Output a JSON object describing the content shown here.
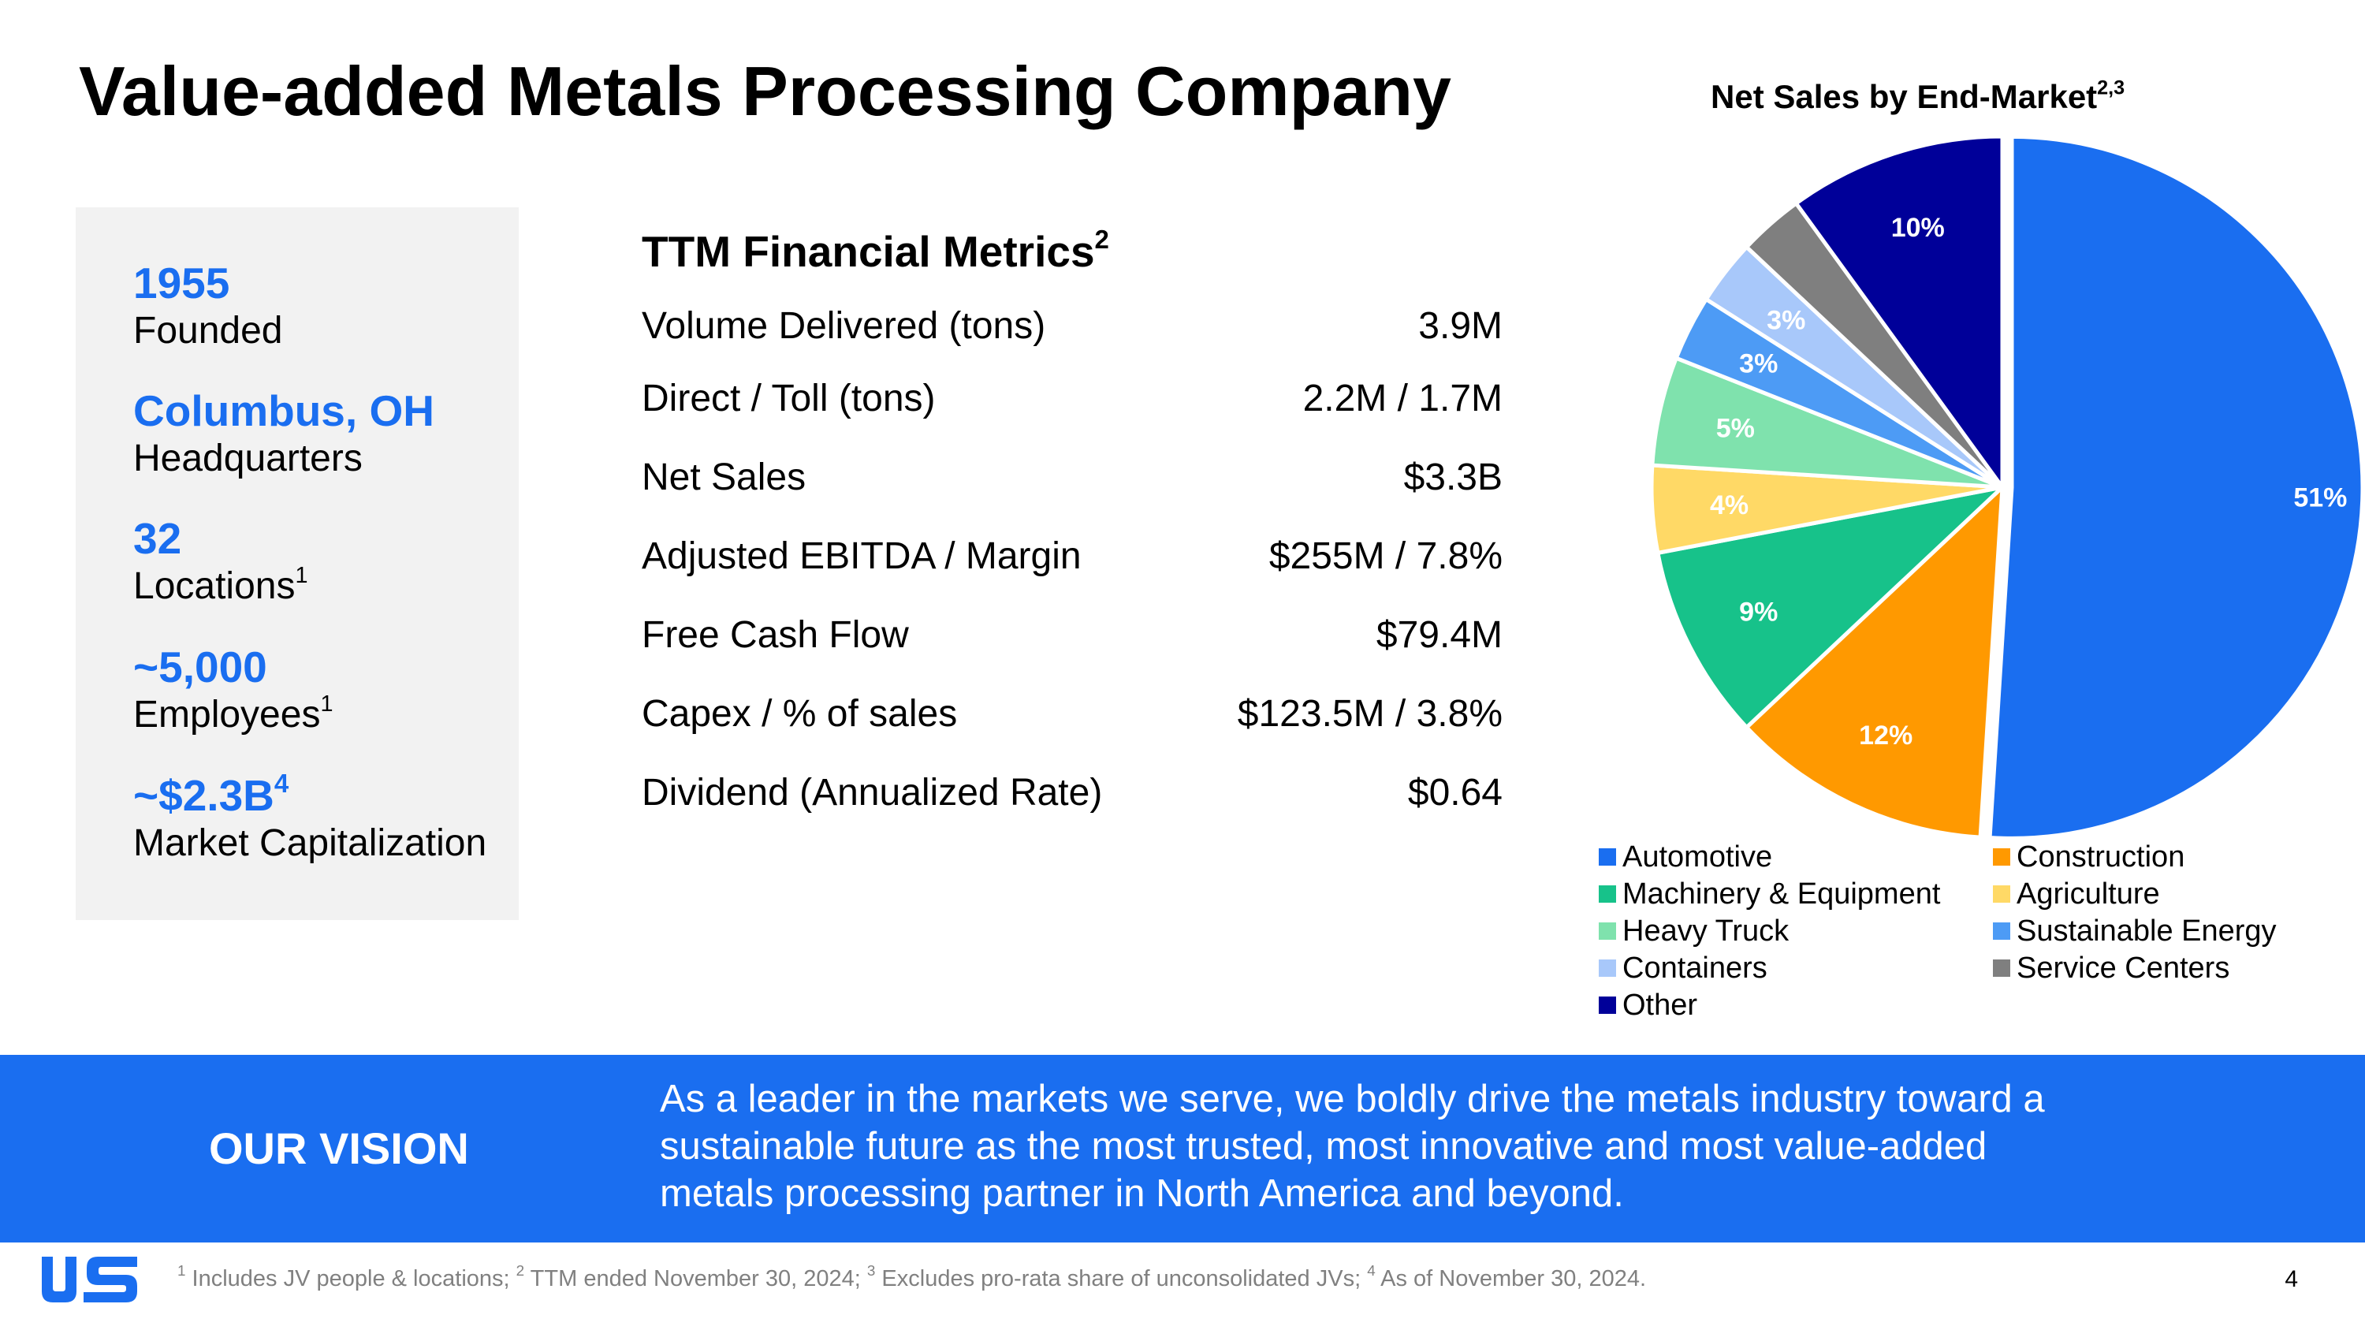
{
  "title": "Value-added Metals Processing Company",
  "facts": [
    {
      "value": "1955",
      "value_sup": "",
      "label": "Founded",
      "label_sup": ""
    },
    {
      "value": "Columbus, OH",
      "value_sup": "",
      "label": "Headquarters",
      "label_sup": ""
    },
    {
      "value": "32",
      "value_sup": "",
      "label": "Locations",
      "label_sup": "1"
    },
    {
      "value": "~5,000",
      "value_sup": "",
      "label": "Employees",
      "label_sup": "1"
    },
    {
      "value": "~$2.3B",
      "value_sup": "4",
      "label": "Market Capitalization",
      "label_sup": ""
    }
  ],
  "metrics": {
    "title": "TTM Financial Metrics",
    "title_sup": "2",
    "rows": [
      {
        "label": "Volume Delivered (tons)",
        "value": "3.9M"
      },
      {
        "label": "Direct / Toll (tons)",
        "value": "2.2M / 1.7M"
      },
      {
        "label": "Net Sales",
        "value": "$3.3B"
      },
      {
        "label": "Adjusted EBITDA / Margin",
        "value": "$255M / 7.8%"
      },
      {
        "label": "Free Cash Flow",
        "value": "$79.4M"
      },
      {
        "label": "Capex / % of sales",
        "value": "$123.5M / 3.8%"
      },
      {
        "label": "Dividend (Annualized Rate)",
        "value": "$0.64"
      }
    ]
  },
  "chart_data": {
    "type": "pie",
    "title": "Net Sales by End-Market",
    "title_sup": "2,3",
    "legend_placement": "bottom",
    "slices": [
      {
        "name": "Automotive",
        "value": 51,
        "label": "51%",
        "color": "#1a6ef0"
      },
      {
        "name": "Construction",
        "value": 12,
        "label": "12%",
        "color": "#ff9900"
      },
      {
        "name": "Machinery & Equipment",
        "value": 9,
        "label": "9%",
        "color": "#17c28a"
      },
      {
        "name": "Agriculture",
        "value": 4,
        "label": "4%",
        "color": "#ffd966"
      },
      {
        "name": "Heavy Truck",
        "value": 5,
        "label": "5%",
        "color": "#7fe2ad"
      },
      {
        "name": "Sustainable Energy",
        "value": 3,
        "label": "3%",
        "color": "#4d9bf5"
      },
      {
        "name": "Containers",
        "value": 3,
        "label": "3%",
        "color": "#a8c8fa"
      },
      {
        "name": "Service Centers",
        "value": 3,
        "label": "",
        "color": "#7f7f7f"
      },
      {
        "name": "Other",
        "value": 10,
        "label": "10%",
        "color": "#000099"
      }
    ],
    "legend_order": [
      "Automotive",
      "Construction",
      "Machinery & Equipment",
      "Agriculture",
      "Heavy Truck",
      "Sustainable Energy",
      "Containers",
      "Service Centers",
      "Other"
    ]
  },
  "vision": {
    "label": "OUR VISION",
    "text": "As a leader in the markets we serve, we boldly drive the metals industry toward a sustainable future as the most trusted, most innovative and most value-added metals processing partner in North America and beyond."
  },
  "footnotes": [
    {
      "num": "1",
      "text": "Includes JV people & locations;"
    },
    {
      "num": "2",
      "text": "TTM ended November 30, 2024;"
    },
    {
      "num": "3",
      "text": "Excludes pro-rata share of unconsolidated JVs;"
    },
    {
      "num": "4",
      "text": "As of November 30, 2024."
    }
  ],
  "page_number": "4",
  "colors": {
    "accent": "#1a6ef0",
    "panel": "#f2f2f2",
    "footnote": "#808080"
  }
}
